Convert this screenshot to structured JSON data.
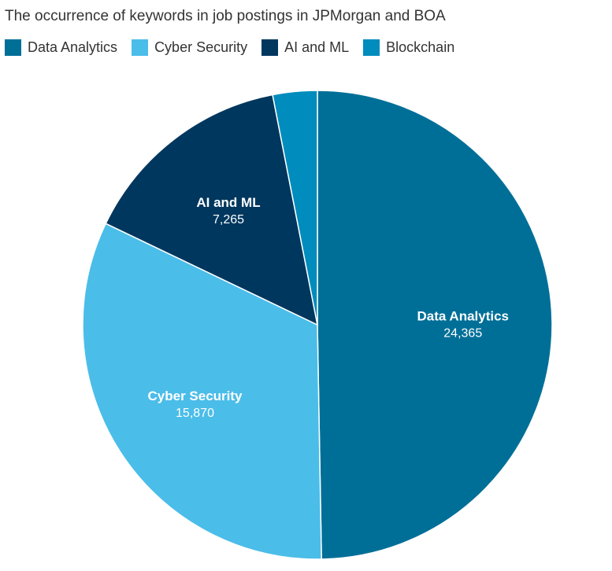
{
  "chart_data": {
    "type": "pie",
    "title": "The occurrence of keywords in job postings in JPMorgan and BOA",
    "legend_position": "top-left",
    "slices": [
      {
        "name": "Data Analytics",
        "value": 24365,
        "value_label": "24,365",
        "color": "#006f98",
        "show_label": true
      },
      {
        "name": "Cyber Security",
        "value": 15870,
        "value_label": "15,870",
        "color": "#4bbde9",
        "show_label": true
      },
      {
        "name": "AI and ML",
        "value": 7265,
        "value_label": "7,265",
        "color": "#00375e",
        "show_label": true
      },
      {
        "name": "Blockchain",
        "value": 1500,
        "value_label": "",
        "color": "#008cbd",
        "show_label": false
      }
    ]
  }
}
